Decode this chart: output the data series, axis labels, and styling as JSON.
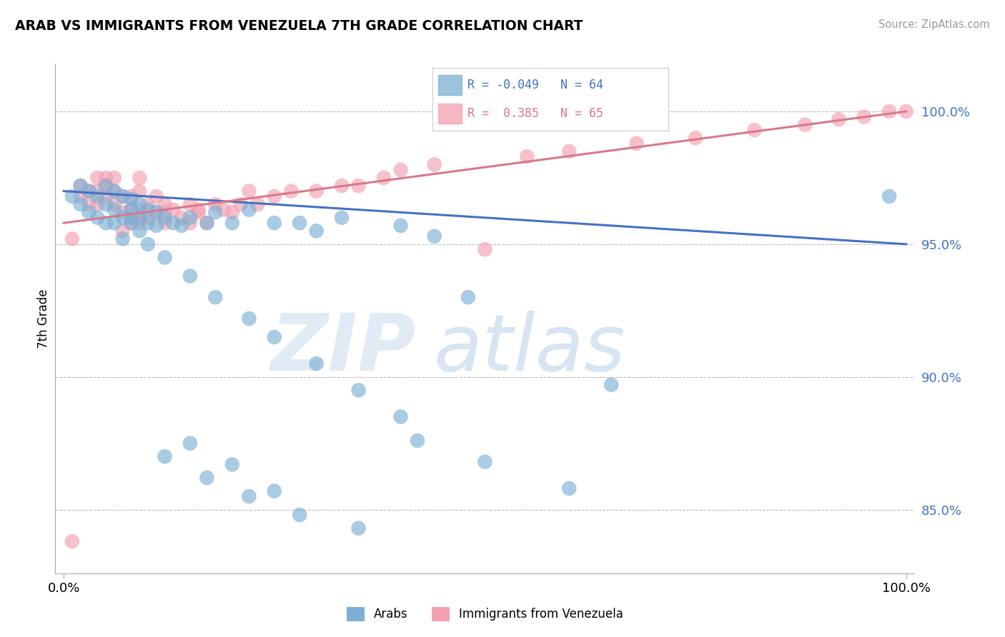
{
  "title": "ARAB VS IMMIGRANTS FROM VENEZUELA 7TH GRADE CORRELATION CHART",
  "source": "Source: ZipAtlas.com",
  "ylabel": "7th Grade",
  "legend_blue_label": "Arabs",
  "legend_pink_label": "Immigrants from Venezuela",
  "R_blue": -0.049,
  "N_blue": 64,
  "R_pink": 0.385,
  "N_pink": 65,
  "blue_color": "#7bafd4",
  "pink_color": "#f4a0b0",
  "blue_line_color": "#4472c4",
  "pink_line_color": "#d9788a",
  "ytick_values": [
    0.85,
    0.9,
    0.95,
    1.0
  ],
  "ytick_labels": [
    "85.0%",
    "90.0%",
    "95.0%",
    "100.0%"
  ],
  "ymin": 0.826,
  "ymax": 1.018,
  "xmin": -0.01,
  "xmax": 1.01,
  "blue_line_x0": 0.0,
  "blue_line_x1": 1.0,
  "blue_line_y0": 0.97,
  "blue_line_y1": 0.95,
  "pink_line_x0": 0.0,
  "pink_line_x1": 1.0,
  "pink_line_y0": 0.958,
  "pink_line_y1": 1.0,
  "blue_scatter_x": [
    0.01,
    0.02,
    0.02,
    0.03,
    0.03,
    0.04,
    0.04,
    0.05,
    0.05,
    0.05,
    0.06,
    0.06,
    0.07,
    0.07,
    0.08,
    0.08,
    0.08,
    0.09,
    0.09,
    0.1,
    0.1,
    0.11,
    0.11,
    0.12,
    0.13,
    0.14,
    0.15,
    0.17,
    0.18,
    0.2,
    0.22,
    0.25,
    0.28,
    0.3,
    0.33,
    0.4,
    0.44,
    0.48,
    0.65,
    0.98,
    0.06,
    0.07,
    0.08,
    0.09,
    0.1,
    0.12,
    0.15,
    0.18,
    0.22,
    0.25,
    0.3,
    0.35,
    0.4,
    0.15,
    0.2,
    0.25,
    0.12,
    0.17,
    0.22,
    0.28,
    0.35,
    0.42,
    0.5,
    0.6
  ],
  "blue_scatter_y": [
    0.968,
    0.972,
    0.965,
    0.97,
    0.962,
    0.968,
    0.96,
    0.972,
    0.965,
    0.958,
    0.97,
    0.963,
    0.968,
    0.96,
    0.967,
    0.963,
    0.958,
    0.965,
    0.96,
    0.963,
    0.958,
    0.962,
    0.957,
    0.96,
    0.958,
    0.957,
    0.96,
    0.958,
    0.962,
    0.958,
    0.963,
    0.958,
    0.958,
    0.955,
    0.96,
    0.957,
    0.953,
    0.93,
    0.897,
    0.968,
    0.958,
    0.952,
    0.96,
    0.955,
    0.95,
    0.945,
    0.938,
    0.93,
    0.922,
    0.915,
    0.905,
    0.895,
    0.885,
    0.875,
    0.867,
    0.857,
    0.87,
    0.862,
    0.855,
    0.848,
    0.843,
    0.876,
    0.868,
    0.858
  ],
  "pink_scatter_x": [
    0.01,
    0.02,
    0.02,
    0.03,
    0.03,
    0.04,
    0.04,
    0.04,
    0.05,
    0.05,
    0.05,
    0.06,
    0.06,
    0.06,
    0.07,
    0.07,
    0.08,
    0.08,
    0.08,
    0.09,
    0.09,
    0.09,
    0.09,
    0.1,
    0.1,
    0.11,
    0.11,
    0.12,
    0.12,
    0.13,
    0.14,
    0.15,
    0.15,
    0.16,
    0.17,
    0.18,
    0.19,
    0.2,
    0.21,
    0.23,
    0.25,
    0.27,
    0.3,
    0.33,
    0.35,
    0.38,
    0.4,
    0.44,
    0.5,
    0.55,
    0.6,
    0.68,
    0.75,
    0.82,
    0.88,
    0.92,
    0.95,
    0.98,
    1.0,
    0.01,
    0.07,
    0.09,
    0.12,
    0.16,
    0.22
  ],
  "pink_scatter_y": [
    0.838,
    0.968,
    0.972,
    0.965,
    0.97,
    0.965,
    0.97,
    0.975,
    0.972,
    0.968,
    0.975,
    0.965,
    0.97,
    0.975,
    0.962,
    0.968,
    0.958,
    0.963,
    0.968,
    0.958,
    0.963,
    0.97,
    0.975,
    0.96,
    0.965,
    0.962,
    0.968,
    0.958,
    0.965,
    0.963,
    0.96,
    0.958,
    0.965,
    0.962,
    0.958,
    0.965,
    0.963,
    0.962,
    0.965,
    0.965,
    0.968,
    0.97,
    0.97,
    0.972,
    0.972,
    0.975,
    0.978,
    0.98,
    0.948,
    0.983,
    0.985,
    0.988,
    0.99,
    0.993,
    0.995,
    0.997,
    0.998,
    1.0,
    1.0,
    0.952,
    0.955,
    0.96,
    0.962,
    0.963,
    0.97
  ]
}
